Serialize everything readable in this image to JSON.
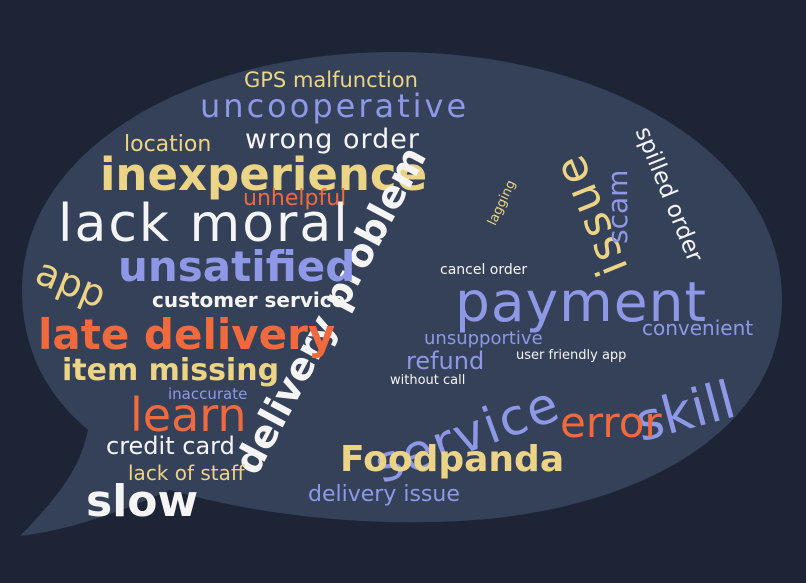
{
  "colors": {
    "background": "#1d2436",
    "bubble": "#344158",
    "white": "#f4f4f4",
    "blue": "#8f98e6",
    "yellow": "#ecd487",
    "orange": "#f06a3e"
  },
  "words": {
    "gps_malfunction": "GPS malfunction",
    "uncooperative": "uncooperative",
    "location": "location",
    "wrong_order": "wrong order",
    "inexperience": "inexperience",
    "unhelpful": "unhelpful",
    "lack_moral": "lack moral",
    "lagging": "lagging",
    "delivery_problem": "delivery problem",
    "issue": "issue",
    "scam": "scam",
    "spilled_order": "spilled order",
    "app": "app",
    "unsatified": "unsatified",
    "cancel_order": "cancel order",
    "customer_service": "customer service",
    "payment": "payment",
    "convenient": "convenient",
    "late_delivery": "late delivery",
    "unsupportive": "unsupportive",
    "refund": "refund",
    "user_friendly_app": "user friendly app",
    "item_missing": "item missing",
    "without_call": "without call",
    "skill": "skill",
    "inaccurate": "inaccurate",
    "learn": "learn",
    "service": "service",
    "error": "error",
    "credit_card": "credit card",
    "foodpanda": "Foodpanda",
    "lack_of_staff": "lack of staff",
    "slow": "slow",
    "delivery_issue": "delivery issue"
  }
}
